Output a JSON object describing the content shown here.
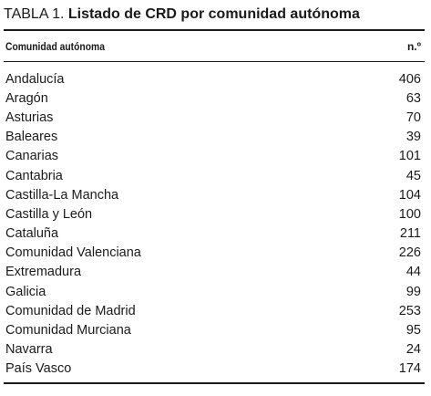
{
  "caption": {
    "label": "TABLA 1.",
    "title": "Listado de CRD por comunidad autónoma"
  },
  "table": {
    "headers": {
      "name": "Comunidad autónoma",
      "value": "n.º"
    },
    "rows": [
      {
        "name": "Andalucía",
        "value": "406"
      },
      {
        "name": "Aragón",
        "value": "63"
      },
      {
        "name": "Asturias",
        "value": "70"
      },
      {
        "name": "Baleares",
        "value": "39"
      },
      {
        "name": "Canarias",
        "value": "101"
      },
      {
        "name": "Cantabria",
        "value": "45"
      },
      {
        "name": "Castilla-La Mancha",
        "value": "104"
      },
      {
        "name": "Castilla y León",
        "value": "100"
      },
      {
        "name": "Cataluña",
        "value": "211"
      },
      {
        "name": "Comunidad Valenciana",
        "value": "226"
      },
      {
        "name": "Extremadura",
        "value": "44"
      },
      {
        "name": "Galicia",
        "value": "99"
      },
      {
        "name": "Comunidad de Madrid",
        "value": "253"
      },
      {
        "name": "Comunidad Murciana",
        "value": "95"
      },
      {
        "name": "Navarra",
        "value": "24"
      },
      {
        "name": "País Vasco",
        "value": "174"
      }
    ]
  }
}
